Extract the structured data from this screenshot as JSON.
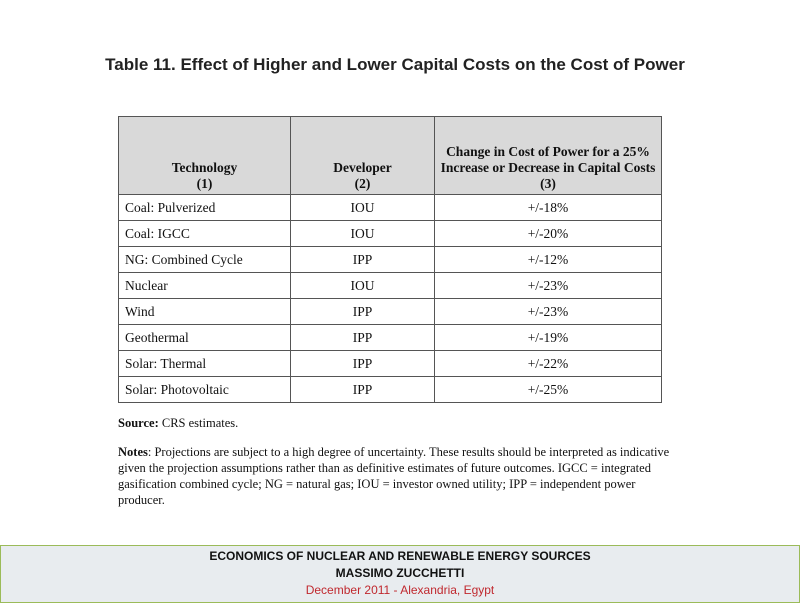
{
  "title": "Table 11. Effect of Higher and Lower Capital Costs on the Cost of Power",
  "table": {
    "headers": [
      [
        "Technology",
        "(1)"
      ],
      [
        "Developer",
        "(2)"
      ],
      [
        "Change in Cost of Power for a 25% Increase or Decrease in Capital Costs",
        "(3)"
      ]
    ],
    "rows": [
      [
        "Coal: Pulverized",
        "IOU",
        "+/-18%"
      ],
      [
        "Coal: IGCC",
        "IOU",
        "+/-20%"
      ],
      [
        "NG: Combined Cycle",
        "IPP",
        "+/-12%"
      ],
      [
        "Nuclear",
        "IOU",
        "+/-23%"
      ],
      [
        "Wind",
        "IPP",
        "+/-23%"
      ],
      [
        "Geothermal",
        "IPP",
        "+/-19%"
      ],
      [
        "Solar: Thermal",
        "IPP",
        "+/-22%"
      ],
      [
        "Solar: Photovoltaic",
        "IPP",
        "+/-25%"
      ]
    ]
  },
  "source": {
    "label": "Source:",
    "text": " CRS estimates."
  },
  "notes": {
    "label": "Notes",
    "text": ": Projections are subject to a high degree of uncertainty.  These results should be interpreted as indicative given the projection assumptions rather than as definitive estimates of future outcomes. IGCC = integrated gasification combined cycle; NG = natural gas; IOU = investor owned utility; IPP = independent power producer."
  },
  "footer": {
    "line1": "ECONOMICS OF NUCLEAR AND RENEWABLE ENERGY SOURCES",
    "line2": "MASSIMO ZUCCHETTI",
    "line3": "December 2011 - Alexandria, Egypt"
  }
}
